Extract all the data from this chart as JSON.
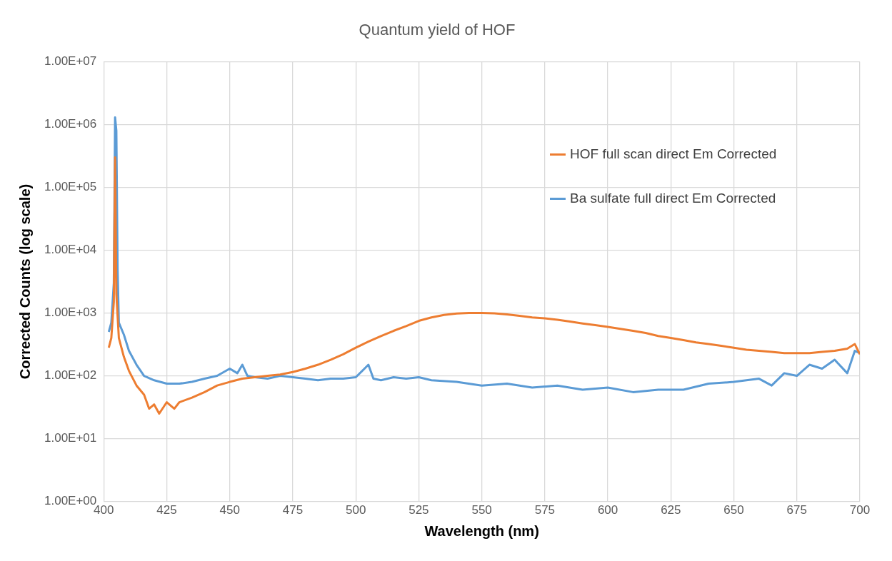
{
  "chart_data": {
    "type": "line",
    "title": "Quantum yield of HOF",
    "xlabel": "Wavelength (nm)",
    "ylabel": "Corrected Counts (log scale)",
    "log": "y",
    "grid": true,
    "legend": "right",
    "marker": "none",
    "line_style": "solid",
    "xlim": [
      400,
      700
    ],
    "xticks": [
      400,
      425,
      450,
      475,
      500,
      525,
      550,
      575,
      600,
      625,
      650,
      675,
      700
    ],
    "ylim": [
      1,
      10000000
    ],
    "yticks": [
      {
        "value": 1,
        "label": "1.00E+00"
      },
      {
        "value": 10,
        "label": "1.00E+01"
      },
      {
        "value": 100,
        "label": "1.00E+02"
      },
      {
        "value": 1000,
        "label": "1.00E+03"
      },
      {
        "value": 10000,
        "label": "1.00E+04"
      },
      {
        "value": 100000,
        "label": "1.00E+05"
      },
      {
        "value": 1000000,
        "label": "1.00E+06"
      },
      {
        "value": 10000000,
        "label": "1.00E+07"
      }
    ],
    "series": [
      {
        "name": "HOF full scan direct Em Corrected",
        "color": "#ed7d31",
        "x": [
          402,
          403,
          404,
          404.5,
          405,
          406,
          408,
          410,
          413,
          416,
          418,
          420,
          422,
          425,
          428,
          430,
          435,
          440,
          445,
          450,
          455,
          460,
          465,
          470,
          475,
          480,
          485,
          490,
          495,
          500,
          505,
          510,
          515,
          520,
          525,
          530,
          535,
          540,
          545,
          550,
          555,
          560,
          565,
          570,
          575,
          580,
          585,
          590,
          595,
          600,
          605,
          610,
          615,
          620,
          625,
          630,
          635,
          640,
          645,
          650,
          655,
          660,
          665,
          670,
          675,
          680,
          685,
          690,
          695,
          698,
          700
        ],
        "values": [
          280,
          400,
          1500,
          300000,
          2000,
          400,
          200,
          120,
          70,
          50,
          30,
          35,
          25,
          38,
          30,
          38,
          45,
          55,
          70,
          80,
          90,
          95,
          100,
          105,
          115,
          130,
          150,
          180,
          220,
          280,
          350,
          430,
          520,
          620,
          750,
          850,
          930,
          980,
          1000,
          1000,
          990,
          950,
          900,
          850,
          820,
          780,
          730,
          680,
          640,
          600,
          560,
          520,
          480,
          430,
          400,
          370,
          340,
          320,
          300,
          280,
          260,
          250,
          240,
          230,
          230,
          230,
          240,
          250,
          270,
          320,
          220
        ]
      },
      {
        "name": "Ba sulfate full direct Em Corrected",
        "color": "#5b9bd5",
        "x": [
          402,
          403,
          404,
          404.5,
          405,
          405.5,
          406,
          408,
          410,
          413,
          416,
          420,
          425,
          430,
          435,
          440,
          445,
          450,
          453,
          455,
          457,
          460,
          465,
          470,
          475,
          480,
          485,
          490,
          495,
          500,
          505,
          507,
          510,
          515,
          520,
          525,
          530,
          540,
          550,
          560,
          570,
          580,
          590,
          600,
          610,
          620,
          630,
          640,
          650,
          660,
          665,
          670,
          675,
          680,
          685,
          690,
          695,
          698,
          700
        ],
        "values": [
          500,
          700,
          3000,
          1300000,
          800000,
          5000,
          700,
          450,
          250,
          150,
          100,
          85,
          75,
          75,
          80,
          90,
          100,
          130,
          110,
          150,
          100,
          95,
          90,
          100,
          95,
          90,
          85,
          90,
          90,
          95,
          150,
          90,
          85,
          95,
          90,
          95,
          85,
          80,
          70,
          75,
          65,
          70,
          60,
          65,
          55,
          60,
          60,
          75,
          80,
          90,
          70,
          110,
          100,
          150,
          130,
          180,
          110,
          250,
          230
        ]
      }
    ]
  }
}
